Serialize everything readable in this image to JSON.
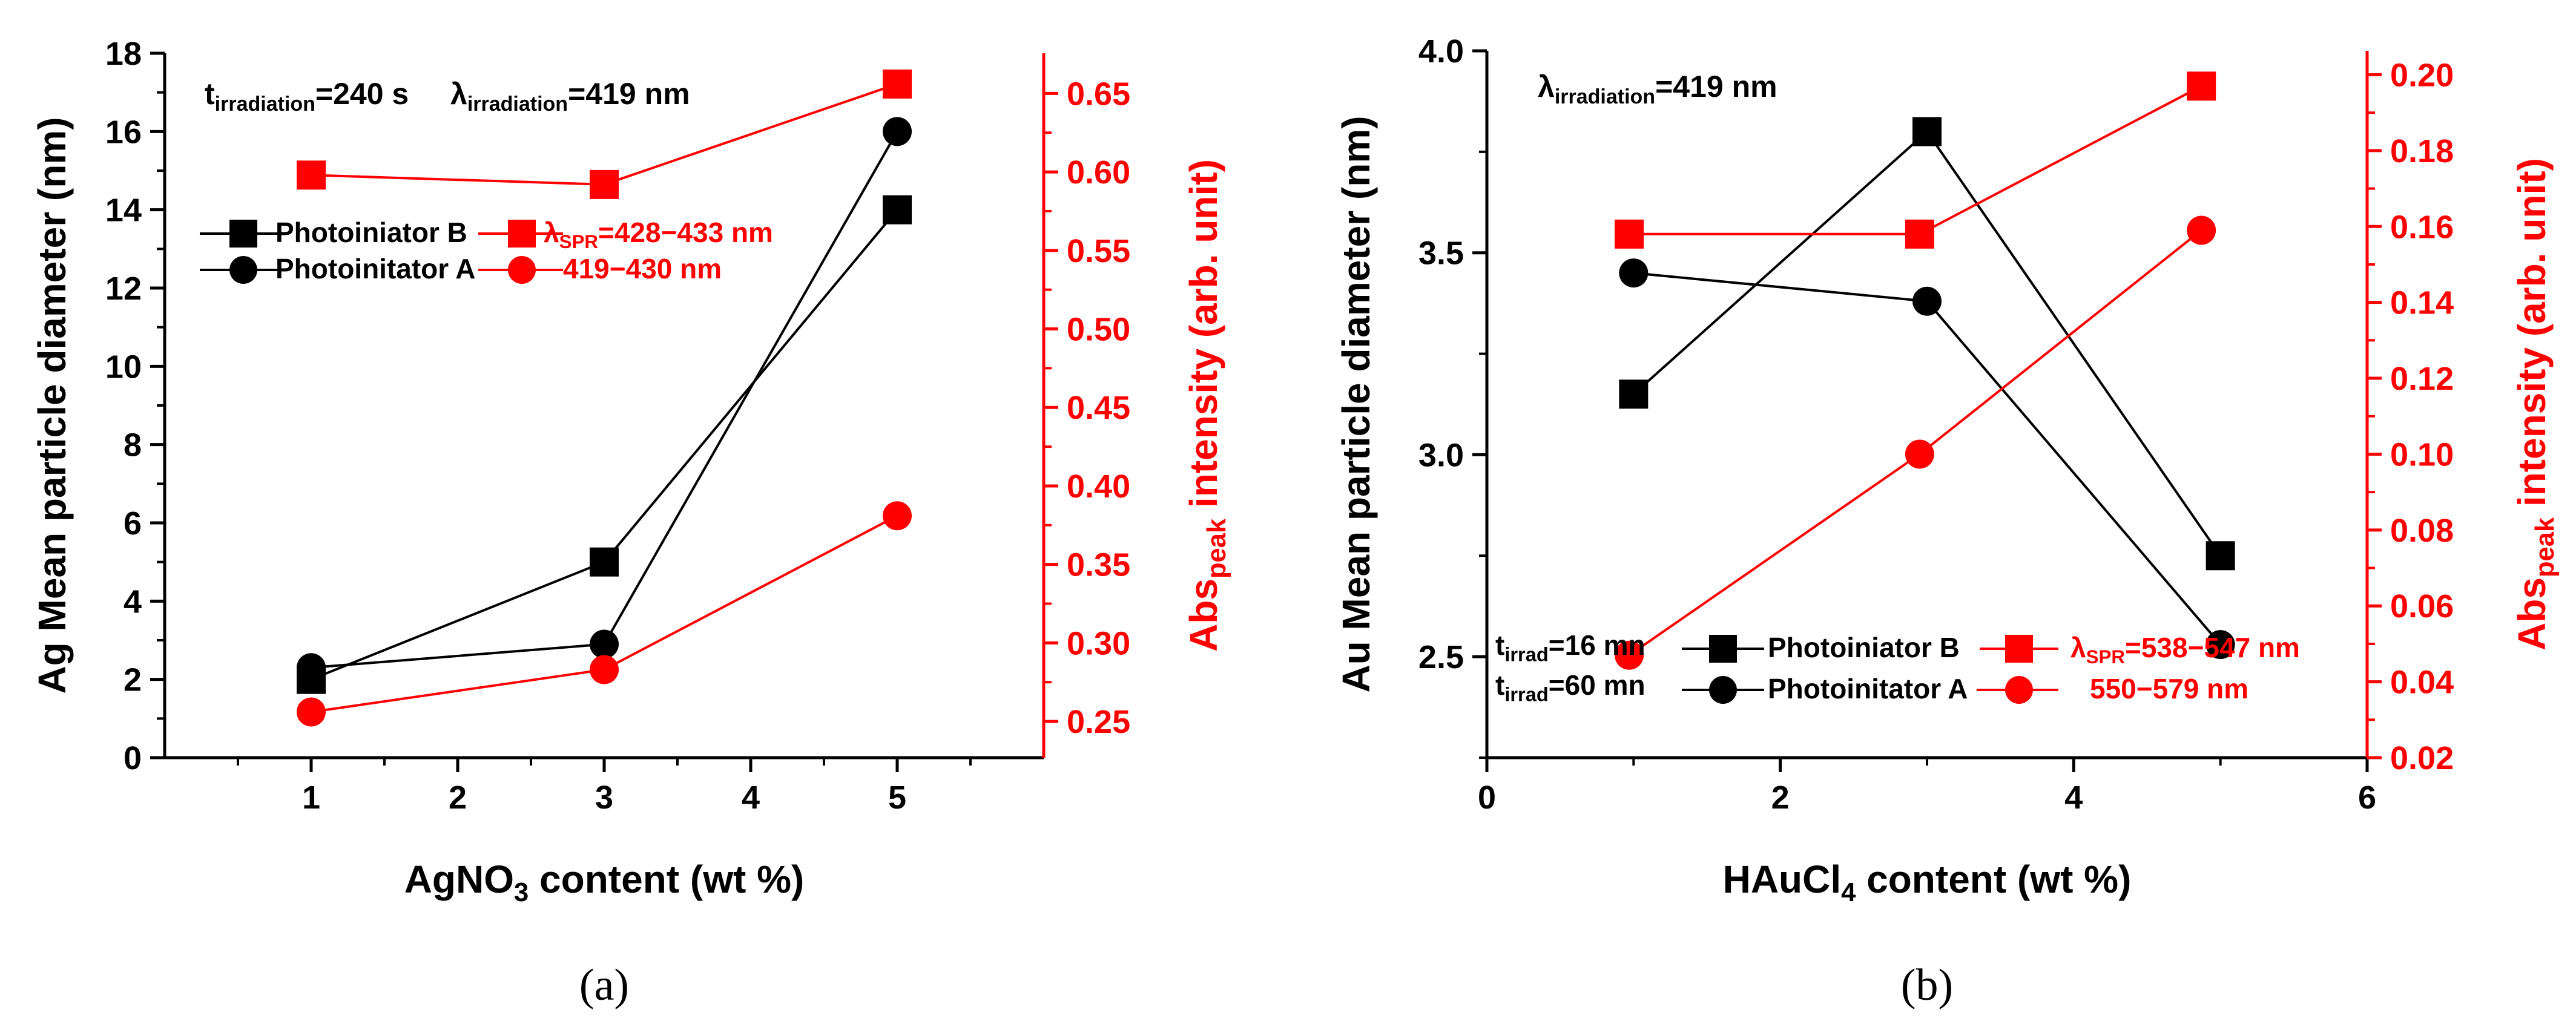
{
  "chart_data": [
    {
      "type": "line",
      "panel_label": "(a)",
      "x": [
        1,
        3,
        5
      ],
      "xlabel": {
        "base": "AgNO",
        "sub": "3",
        "rest": " content (wt %)"
      },
      "ylabel": "Ag Mean particle  diameter (nm)",
      "y2label": {
        "base": "Abs",
        "sub": "peak",
        "rest": " intensity (arb. unit)"
      },
      "xlim": [
        0,
        6
      ],
      "ylim": [
        0,
        18
      ],
      "y2lim": [
        0.2269,
        0.6756
      ],
      "xticks": [
        1,
        2,
        3,
        4,
        5
      ],
      "yticks": [
        0,
        2,
        4,
        6,
        8,
        10,
        12,
        14,
        16,
        18
      ],
      "y2ticks": [
        "0.25",
        "0.30",
        "0.35",
        "0.40",
        "0.45",
        "0.50",
        "0.55",
        "0.60",
        "0.65"
      ],
      "annotation": [
        {
          "base": "t",
          "sub": "irradiation",
          "rest": "=240 s"
        },
        {
          "base": "λ",
          "sub": "irradiation",
          "rest": "=419 nm"
        }
      ],
      "series": [
        {
          "name": "Photoiniator B",
          "axis": "left",
          "color": "#000000",
          "marker": "square",
          "values": [
            2.0,
            5.0,
            14.0
          ]
        },
        {
          "name": "Photoinitator A",
          "axis": "left",
          "color": "#000000",
          "marker": "circle",
          "values": [
            2.3,
            2.9,
            16.0
          ]
        },
        {
          "name": {
            "base": "λ",
            "sub": "SPR",
            "rest": "=428−433 nm"
          },
          "axis": "right",
          "color": "#ff0000",
          "marker": "square",
          "values": [
            0.598,
            0.592,
            0.656
          ]
        },
        {
          "name": "419−430 nm",
          "axis": "right",
          "color": "#ff0000",
          "marker": "circle",
          "values": [
            0.256,
            0.283,
            0.381
          ]
        }
      ]
    },
    {
      "type": "line",
      "panel_label": "(b)",
      "x": [
        1,
        3,
        5
      ],
      "xlabel": {
        "base": "HAuCl",
        "sub": "4",
        "rest": " content (wt %)"
      },
      "ylabel": "Au Mean particle  diameter (nm)",
      "y2label": {
        "base": "Abs",
        "sub": "peak",
        "rest": " intensity (arb. unit)"
      },
      "xlim": [
        0,
        6
      ],
      "ylim": [
        2.25,
        4.0
      ],
      "y2lim": [
        0.02,
        0.2063
      ],
      "xticks": [
        0,
        2,
        4,
        6
      ],
      "yticks": [
        "2.5",
        "3.0",
        "3.5",
        "4.0"
      ],
      "y2ticks": [
        "0.02",
        "0.04",
        "0.06",
        "0.08",
        "0.10",
        "0.12",
        "0.14",
        "0.16",
        "0.18",
        "0.20"
      ],
      "annotation": [
        {
          "base": "λ",
          "sub": "irradiation",
          "rest": "=419 nm"
        }
      ],
      "legend_prefix": [
        {
          "base": "t",
          "sub": "irrad",
          "rest": "=16 mn"
        },
        {
          "base": "t",
          "sub": "irrad",
          "rest": "=60 mn"
        }
      ],
      "series": [
        {
          "name": "Photoiniator B",
          "axis": "left",
          "color": "#000000",
          "marker": "square",
          "x": [
            1,
            3,
            5
          ],
          "values": [
            3.15,
            3.8,
            2.75
          ]
        },
        {
          "name": "Photoinitator A",
          "axis": "left",
          "color": "#000000",
          "marker": "circle",
          "x": [
            1,
            3,
            5
          ],
          "values": [
            3.45,
            3.38,
            2.53
          ]
        },
        {
          "name": {
            "base": "λ",
            "sub": "SPR",
            "rest": "=538−547 nm"
          },
          "axis": "right",
          "color": "#ff0000",
          "marker": "square",
          "x": [
            0.97,
            2.95,
            4.87
          ],
          "values": [
            0.158,
            0.158,
            0.197
          ]
        },
        {
          "name": "550−579 nm",
          "axis": "right",
          "color": "#ff0000",
          "marker": "circle",
          "x": [
            0.97,
            2.95,
            4.87
          ],
          "values": [
            0.047,
            0.1,
            0.159
          ]
        }
      ]
    }
  ]
}
